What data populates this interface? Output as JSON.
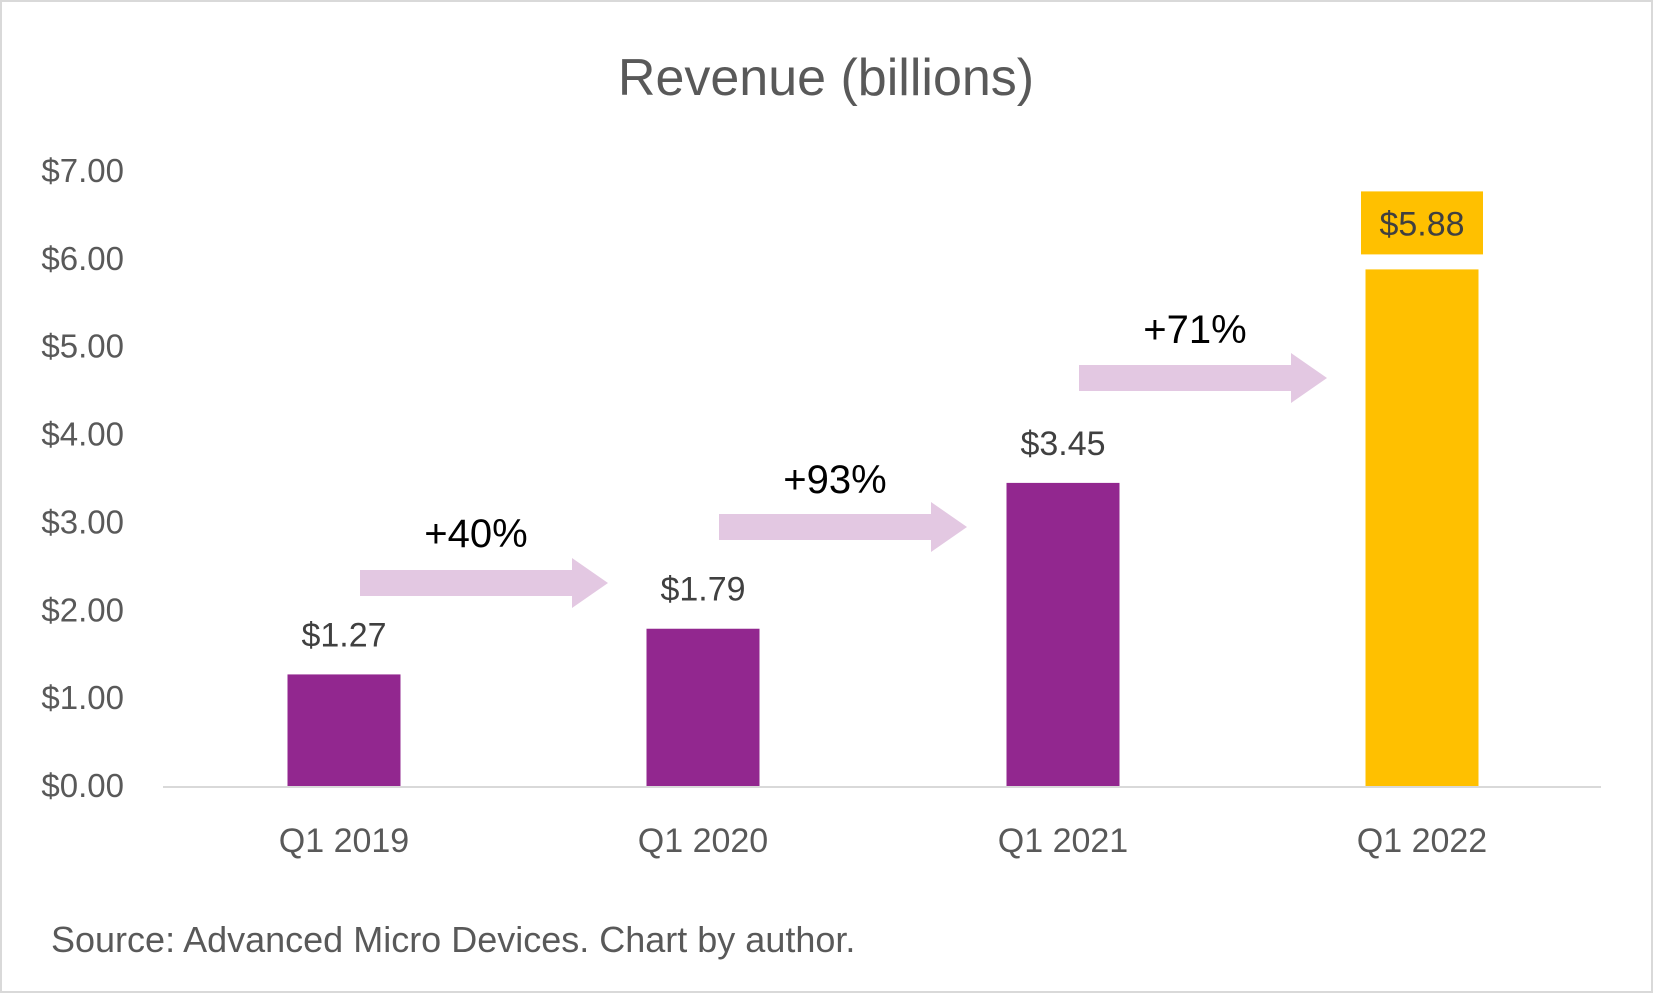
{
  "chart_data": {
    "type": "bar",
    "title": "Revenue (billions)",
    "xlabel": "",
    "ylabel": "",
    "categories": [
      "Q1 2019",
      "Q1 2020",
      "Q1 2021",
      "Q1 2022"
    ],
    "values": [
      1.27,
      1.79,
      3.45,
      5.88
    ],
    "data_labels": [
      "$1.27",
      "$1.79",
      "$3.45",
      "$5.88"
    ],
    "bar_colors": [
      "#92278f",
      "#92278f",
      "#92278f",
      "#ffc000"
    ],
    "highlight_label_bg": "#ffc000",
    "ylim": [
      0,
      7
    ],
    "yticks": [
      0,
      1,
      2,
      3,
      4,
      5,
      6,
      7
    ],
    "ytick_labels": [
      "$0.00",
      "$1.00",
      "$2.00",
      "$3.00",
      "$4.00",
      "$5.00",
      "$6.00",
      "$7.00"
    ],
    "grid": false,
    "annotations": [
      {
        "text": "+40%",
        "from": "Q1 2019",
        "to": "Q1 2020"
      },
      {
        "text": "+93%",
        "from": "Q1 2020",
        "to": "Q1 2021"
      },
      {
        "text": "+71%",
        "from": "Q1 2021",
        "to": "Q1 2022"
      }
    ],
    "arrow_color": "#e3c8e2",
    "source": "Source: Advanced Micro Devices. Chart by author."
  }
}
